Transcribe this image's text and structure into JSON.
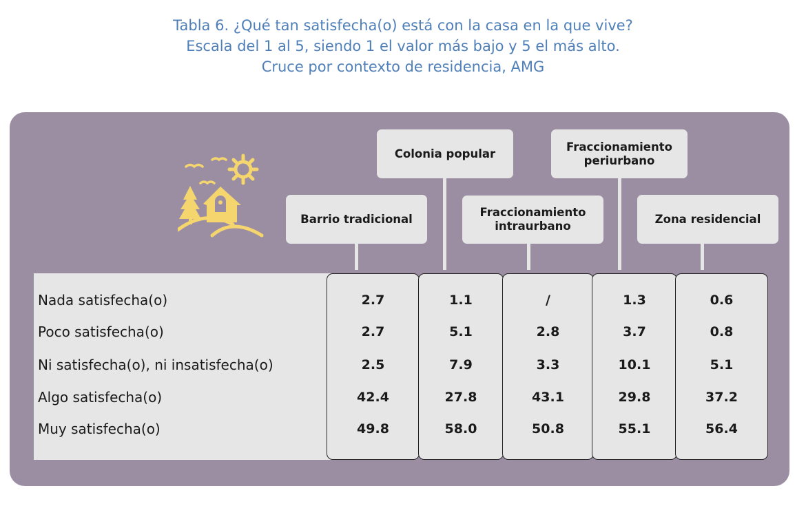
{
  "title": {
    "line1": "Tabla 6. ¿Qué tan satisfecha(o) está con la casa en la que vive?",
    "line2": "Escala del 1 al 5, siendo 1 el valor más bajo y 5 el más alto.",
    "line3": "Cruce por contexto de residencia, AMG"
  },
  "icon": "house-with-sun-birds-trees-icon",
  "colors": {
    "title": "#4f7fb8",
    "panel": "#9b8ea3",
    "cell_bg": "#e6e6e6",
    "icon": "#f5d56e"
  },
  "chart_data": {
    "type": "table",
    "columns": [
      "Barrio tradicional",
      "Colonia popular",
      "Fraccionamiento\nintraurbano",
      "Fraccionamiento\nperiurbano",
      "Zona residencial"
    ],
    "rows": [
      {
        "label": "Nada satisfecha(o)",
        "values": [
          "2.7",
          "1.1",
          "/",
          "1.3",
          "0.6"
        ]
      },
      {
        "label": "Poco satisfecha(o)",
        "values": [
          "2.7",
          "5.1",
          "2.8",
          "3.7",
          "0.8"
        ]
      },
      {
        "label": "Ni satisfecha(o), ni insatisfecha(o)",
        "values": [
          "2.5",
          "7.9",
          "3.3",
          "10.1",
          "5.1"
        ]
      },
      {
        "label": "Algo satisfecha(o)",
        "values": [
          "42.4",
          "27.8",
          "43.1",
          "29.8",
          "37.2"
        ]
      },
      {
        "label": "Muy satisfecha(o)",
        "values": [
          "49.8",
          "58.0",
          "50.8",
          "55.1",
          "56.4"
        ]
      }
    ]
  }
}
